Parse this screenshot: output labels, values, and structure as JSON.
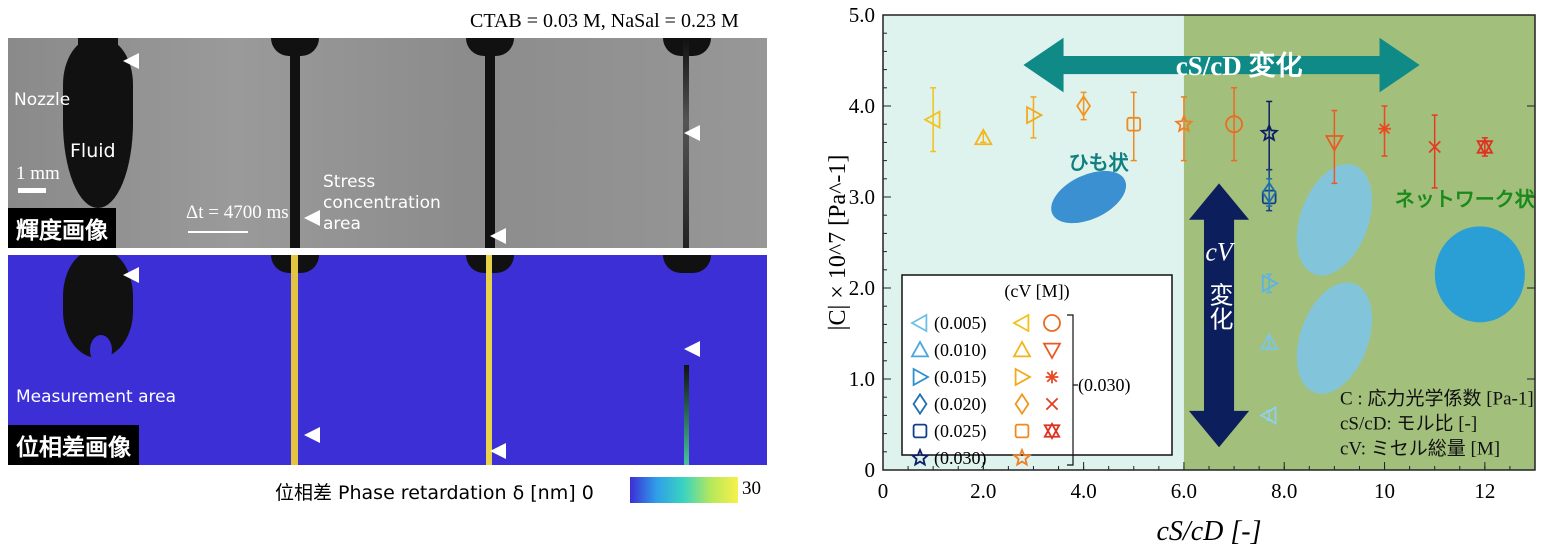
{
  "header": {
    "condition": "CTAB = 0.03 M, NaSal = 0.23 M"
  },
  "left_panel": {
    "brightness_label": "輝度画像",
    "phase_label": "位相差画像",
    "nozzle": "Nozzle",
    "fluid": "Fluid",
    "scale": "1 mm",
    "dt": "Δt = 4700 ms",
    "stress": "Stress concentration area",
    "measurement": "Measurement area",
    "colorbar": {
      "label": "位相差 Phase retardation δ [nm]",
      "min": "0",
      "max": "30"
    }
  },
  "chart_data": {
    "type": "scatter",
    "xlabel": "cS/cD [-]",
    "ylabel": "|C| × 10^7 [Pa^-1]",
    "xlim": [
      0,
      13
    ],
    "ylim": [
      0,
      5
    ],
    "xticks": [
      "0",
      "2.0",
      "4.0",
      "6.0",
      "8.0",
      "10",
      "12"
    ],
    "yticks": [
      "0",
      "1.0",
      "2.0",
      "3.0",
      "4.0",
      "5.0"
    ],
    "regions": [
      {
        "from": 0,
        "to": 6,
        "color": "#dff3ee",
        "label": "ひも状"
      },
      {
        "from": 6,
        "to": 13,
        "color": "#a3bf7c",
        "label": "ネットワーク状"
      }
    ],
    "arrows": {
      "horizontal": "cS/cD 変化",
      "vertical_top": "cV",
      "vertical_bottom": "変化"
    },
    "legend_title": "(cV [M])",
    "legend": [
      {
        "label": "(0.005)",
        "marker": "ltri",
        "color": "#6cbfe6"
      },
      {
        "label": "(0.010)",
        "marker": "tri",
        "color": "#4aa6dc"
      },
      {
        "label": "(0.015)",
        "marker": "rtri",
        "color": "#2f8fd0"
      },
      {
        "label": "(0.020)",
        "marker": "diamond",
        "color": "#1f6fae"
      },
      {
        "label": "(0.025)",
        "marker": "square",
        "color": "#123f8a"
      },
      {
        "label": "(0.030)",
        "marker": "star",
        "color": "#0c1f66"
      }
    ],
    "legend_group_label": "(0.030)",
    "notes": [
      "C : 応力光学係数 [Pa-1]",
      "cS/cD: モル比 [-]",
      "cV: ミセル総量 [M]"
    ],
    "points": [
      {
        "x": 1,
        "y": 3.85,
        "lo": 3.5,
        "hi": 4.2,
        "marker": "ltri",
        "color": "#f2c21b"
      },
      {
        "x": 2,
        "y": 3.65,
        "lo": 3.6,
        "hi": 3.7,
        "marker": "tri",
        "color": "#f2b51b"
      },
      {
        "x": 3,
        "y": 3.9,
        "lo": 3.65,
        "hi": 4.1,
        "marker": "rtri",
        "color": "#f2a91b"
      },
      {
        "x": 4,
        "y": 4.0,
        "lo": 3.85,
        "hi": 4.15,
        "marker": "diamond",
        "color": "#f0961e"
      },
      {
        "x": 5,
        "y": 3.8,
        "lo": 3.4,
        "hi": 4.15,
        "marker": "square",
        "color": "#ee8a20"
      },
      {
        "x": 6,
        "y": 3.8,
        "lo": 3.4,
        "hi": 4.1,
        "marker": "star",
        "color": "#ee7f22"
      },
      {
        "x": 7,
        "y": 3.8,
        "lo": 3.4,
        "hi": 4.2,
        "marker": "circle",
        "color": "#ec6a24"
      },
      {
        "x": 7.7,
        "y": 3.7,
        "lo": 3.3,
        "hi": 4.05,
        "marker": "star",
        "color": "#0c1f66"
      },
      {
        "x": 7.7,
        "y": 3.0,
        "lo": 2.85,
        "hi": 3.3,
        "marker": "square",
        "color": "#123f8a"
      },
      {
        "x": 7.7,
        "y": 3.05,
        "lo": 2.9,
        "hi": 3.2,
        "marker": "diamond",
        "color": "#1f6fae"
      },
      {
        "x": 7.7,
        "y": 2.05,
        "lo": 1.95,
        "hi": 2.15,
        "marker": "rtri",
        "color": "#5bb4e6"
      },
      {
        "x": 7.7,
        "y": 1.4,
        "lo": 1.35,
        "hi": 1.45,
        "marker": "tri",
        "color": "#7cc6ea"
      },
      {
        "x": 7.7,
        "y": 0.6,
        "lo": 0.55,
        "hi": 0.65,
        "marker": "ltri",
        "color": "#8fd0ee"
      },
      {
        "x": 9,
        "y": 3.6,
        "lo": 3.15,
        "hi": 3.95,
        "marker": "dtri",
        "color": "#ea5a25"
      },
      {
        "x": 10,
        "y": 3.75,
        "lo": 3.45,
        "hi": 4.0,
        "marker": "asterisk",
        "color": "#e84a22"
      },
      {
        "x": 11,
        "y": 3.55,
        "lo": 3.1,
        "hi": 3.9,
        "marker": "x",
        "color": "#e43c22"
      },
      {
        "x": 12,
        "y": 3.55,
        "lo": 3.45,
        "hi": 3.65,
        "marker": "hexagram",
        "color": "#e0301f"
      }
    ]
  }
}
